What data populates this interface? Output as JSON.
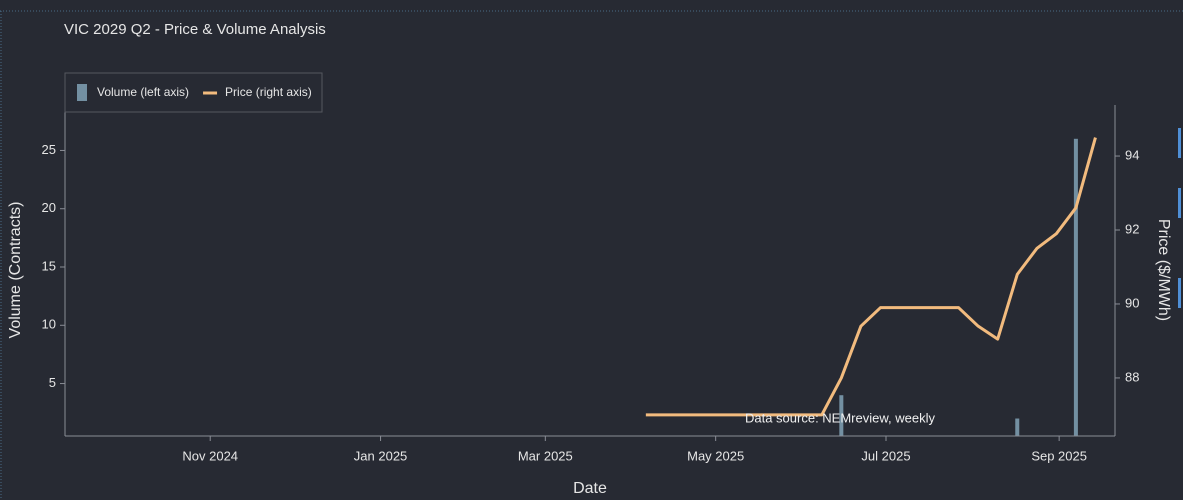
{
  "chart_data": {
    "type": "bar-line",
    "title": "VIC 2029 Q2 - Price & Volume Analysis",
    "xlabel": "Date",
    "ylabel": "Volume (Contracts)",
    "y2label": "Price ($/MWh)",
    "annotation": "Data source: NEMreview, weekly",
    "legend": "top-left",
    "x": [
      "2025-04-06",
      "2025-04-13",
      "2025-04-20",
      "2025-04-27",
      "2025-05-04",
      "2025-05-11",
      "2025-05-18",
      "2025-05-25",
      "2025-06-01",
      "2025-06-08",
      "2025-06-15",
      "2025-06-22",
      "2025-06-29",
      "2025-07-06",
      "2025-07-13",
      "2025-07-20",
      "2025-07-27",
      "2025-08-03",
      "2025-08-10",
      "2025-08-17",
      "2025-08-24",
      "2025-08-31",
      "2025-09-07",
      "2025-09-14"
    ],
    "series": [
      {
        "name": "Volume (left axis)",
        "type": "bar",
        "axis": "y",
        "color": "#7390a2",
        "values": [
          0,
          0,
          0,
          0,
          0,
          0,
          0,
          0,
          0,
          0,
          4,
          0,
          0,
          0,
          0,
          0,
          0,
          0,
          0,
          2,
          0,
          0,
          26,
          0
        ]
      },
      {
        "name": "Price (right axis)",
        "type": "line",
        "axis": "y2",
        "color": "#f2bb7e",
        "values": [
          87.0,
          87.0,
          87.0,
          87.0,
          87.0,
          87.0,
          87.0,
          87.0,
          87.0,
          87.0,
          88.0,
          89.4,
          89.9,
          89.9,
          89.9,
          89.9,
          89.9,
          89.4,
          89.05,
          90.8,
          91.5,
          91.9,
          92.6,
          94.5
        ]
      }
    ],
    "xlim": [
      "2024-09-10",
      "2025-09-21"
    ],
    "xticks": [
      {
        "value": "2024-11-01",
        "label": "Nov 2024"
      },
      {
        "value": "2025-01-01",
        "label": "Jan 2025"
      },
      {
        "value": "2025-03-01",
        "label": "Mar 2025"
      },
      {
        "value": "2025-05-01",
        "label": "May 2025"
      },
      {
        "value": "2025-07-01",
        "label": "Jul 2025"
      },
      {
        "value": "2025-09-01",
        "label": "Sep 2025"
      }
    ],
    "ylim": [
      0.5,
      28.9
    ],
    "yticks": [
      5,
      10,
      15,
      20,
      25
    ],
    "y2lim": [
      86.43,
      95.38
    ],
    "y2ticks": [
      88,
      90,
      92,
      94
    ],
    "grid": false
  }
}
